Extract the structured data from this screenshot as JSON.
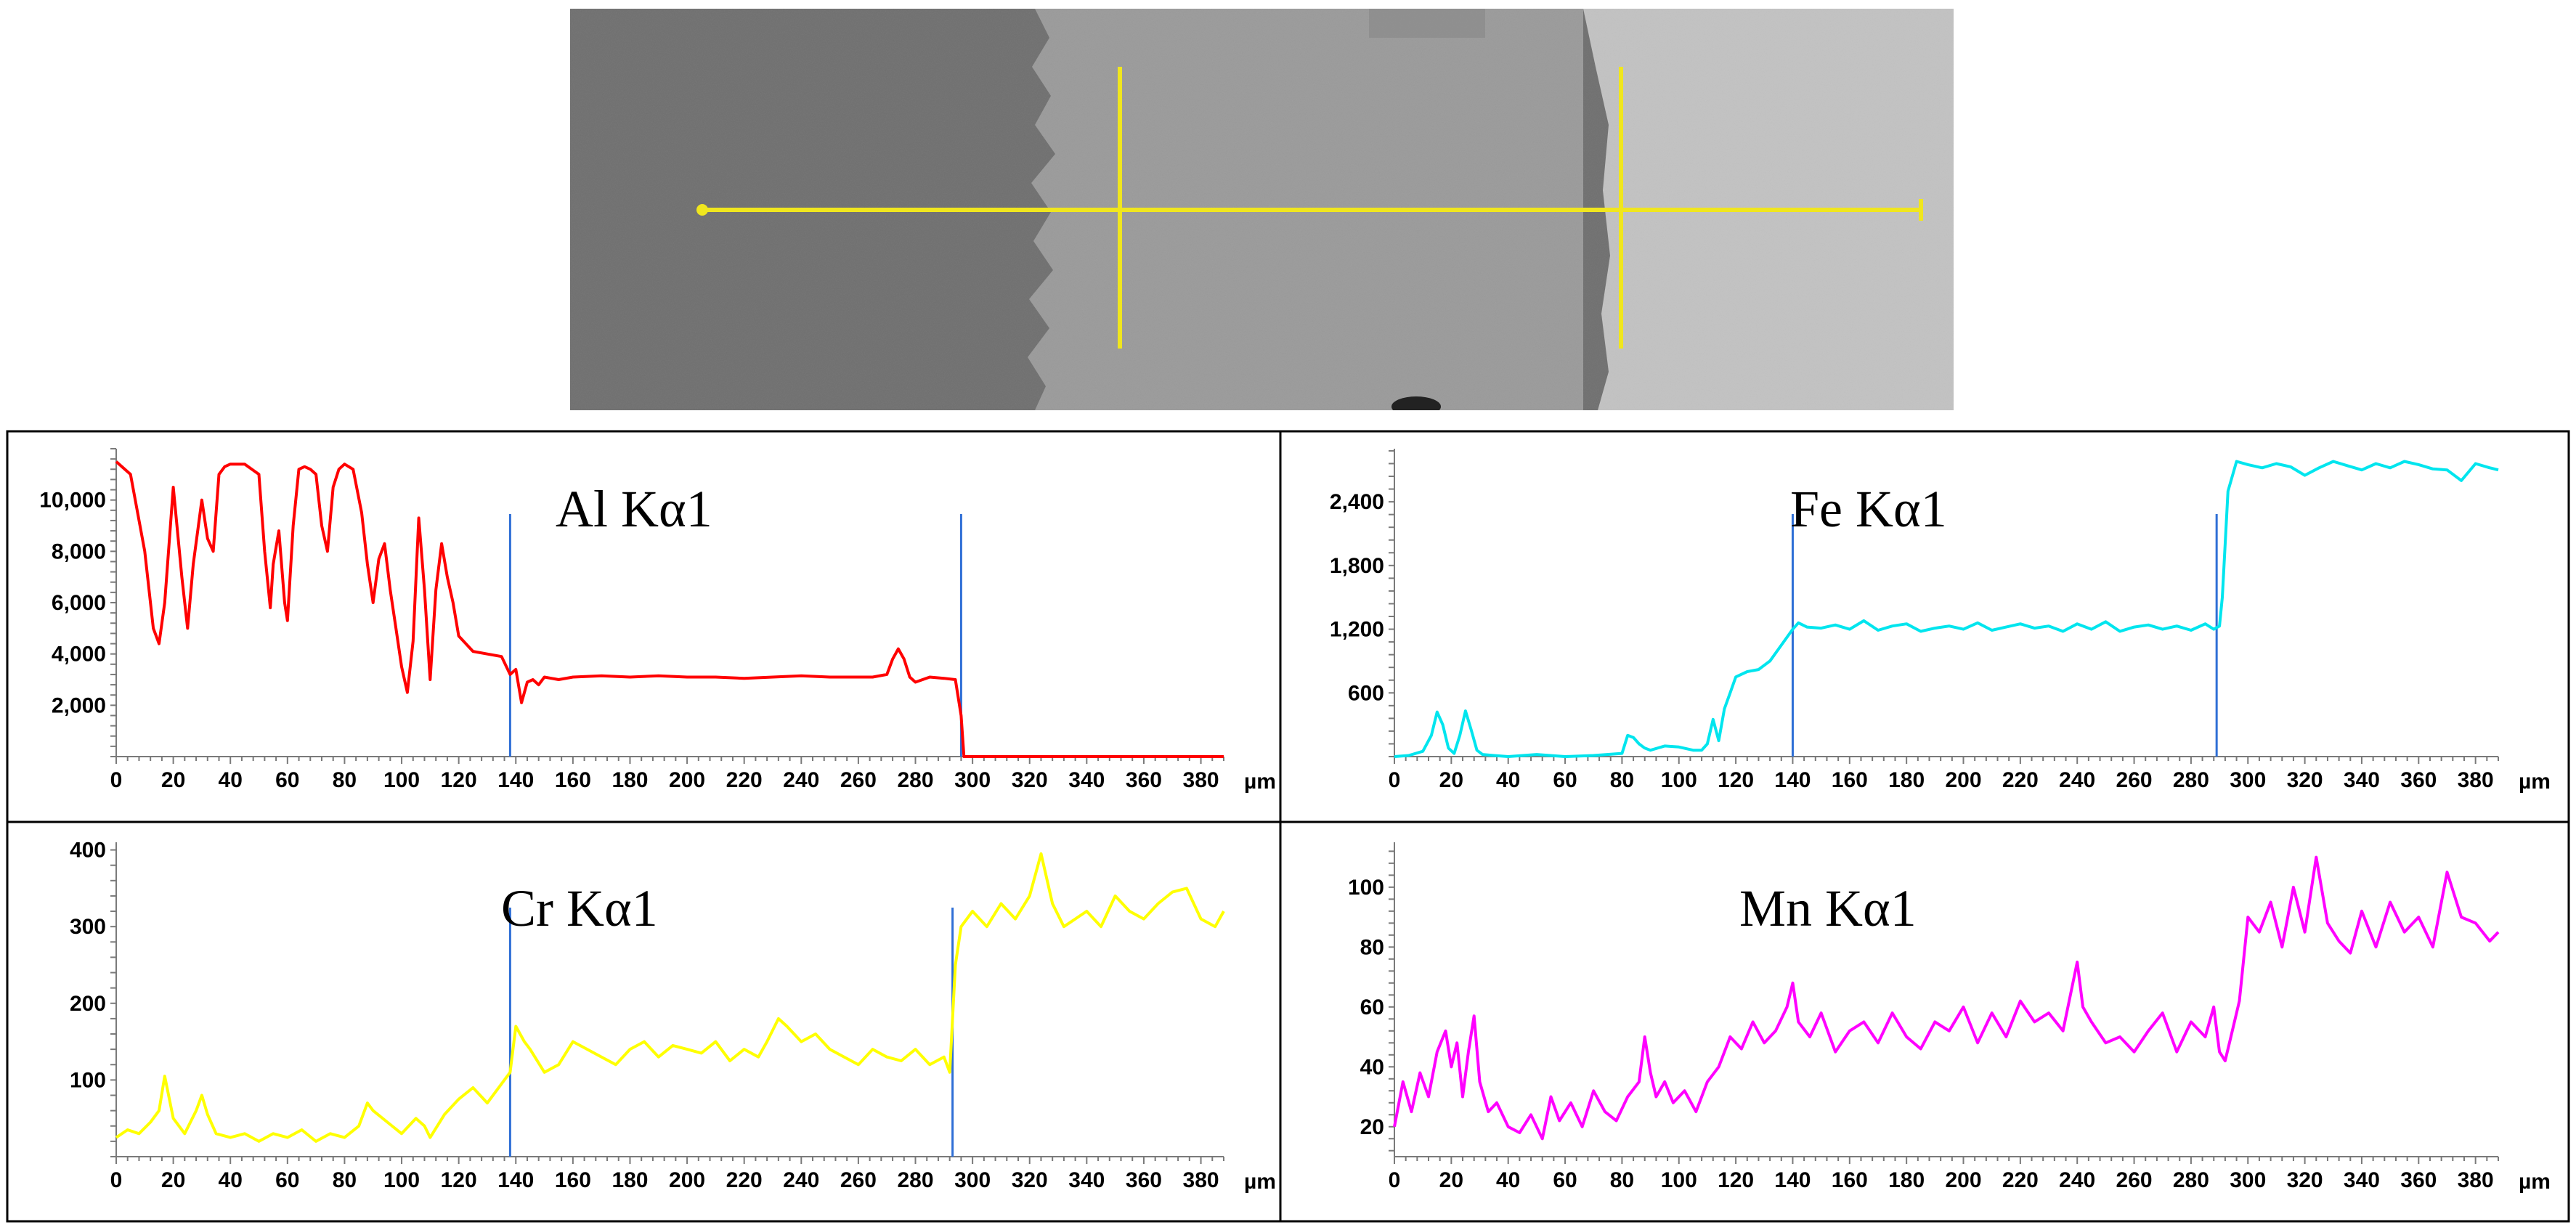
{
  "sem_image": {
    "scan_line_color": "#f0e61e",
    "phase_colors": [
      "#6f6f6f",
      "#9a9a9a",
      "#c2c2c2"
    ]
  },
  "chart_data": [
    {
      "type": "line",
      "title": "Al Kα1",
      "xlabel": "µm",
      "color": "#ff0000",
      "xlim": [
        0,
        388
      ],
      "ylim": [
        0,
        12000
      ],
      "x_ticks": [
        0,
        20,
        40,
        60,
        80,
        100,
        120,
        140,
        160,
        180,
        200,
        220,
        240,
        260,
        280,
        300,
        320,
        340,
        360,
        380
      ],
      "y_ticks": [
        2000,
        4000,
        6000,
        8000,
        10000
      ],
      "y_tick_labels": [
        "2,000",
        "4,000",
        "6,000",
        "8,000",
        "10,000"
      ],
      "boundaries": [
        138,
        296
      ],
      "series": [
        {
          "x": [
            0,
            5,
            10,
            13,
            15,
            17,
            20,
            23,
            25,
            27,
            30,
            32,
            34,
            36,
            38,
            40,
            45,
            50,
            52,
            54,
            55,
            57,
            59,
            60,
            62,
            64,
            66,
            68,
            70,
            72,
            74,
            76,
            78,
            80,
            83,
            86,
            88,
            90,
            92,
            94,
            96,
            98,
            100,
            102,
            104,
            106,
            108,
            110,
            112,
            114,
            116,
            118,
            120,
            125,
            130,
            135,
            138,
            140,
            142,
            144,
            146,
            148,
            150,
            155,
            160,
            170,
            180,
            190,
            200,
            210,
            220,
            230,
            240,
            250,
            260,
            265,
            270,
            272,
            274,
            276,
            278,
            280,
            285,
            290,
            294,
            296,
            297,
            300,
            320,
            340,
            360,
            380,
            388
          ],
          "y": [
            11500,
            11000,
            8000,
            5000,
            4400,
            6000,
            10500,
            7000,
            5000,
            7500,
            10000,
            8500,
            8000,
            11000,
            11300,
            11400,
            11400,
            11000,
            8000,
            5800,
            7500,
            8800,
            6000,
            5300,
            9000,
            11200,
            11300,
            11200,
            11000,
            9000,
            8000,
            10500,
            11200,
            11400,
            11200,
            9500,
            7500,
            6000,
            7700,
            8300,
            6500,
            5000,
            3500,
            2500,
            4500,
            9300,
            6500,
            3000,
            6500,
            8300,
            7000,
            6000,
            4700,
            4100,
            4000,
            3900,
            3200,
            3400,
            2100,
            2900,
            3000,
            2800,
            3100,
            3000,
            3100,
            3150,
            3100,
            3150,
            3100,
            3100,
            3050,
            3100,
            3150,
            3100,
            3100,
            3100,
            3200,
            3800,
            4200,
            3800,
            3100,
            2900,
            3100,
            3050,
            3000,
            1600,
            0,
            0,
            0,
            0,
            0,
            0,
            0
          ]
        }
      ]
    },
    {
      "type": "line",
      "title": "Fe Kα1",
      "xlabel": "µm",
      "color": "#00e5ee",
      "xlim": [
        0,
        388
      ],
      "ylim": [
        0,
        2900
      ],
      "x_ticks": [
        0,
        20,
        40,
        60,
        80,
        100,
        120,
        140,
        160,
        180,
        200,
        220,
        240,
        260,
        280,
        300,
        320,
        340,
        360,
        380
      ],
      "y_ticks": [
        600,
        1200,
        1800,
        2400
      ],
      "y_tick_labels": [
        "600",
        "1,200",
        "1,800",
        "2,400"
      ],
      "boundaries": [
        140,
        289
      ],
      "series": [
        {
          "x": [
            0,
            5,
            10,
            13,
            15,
            17,
            19,
            21,
            23,
            25,
            27,
            29,
            31,
            35,
            40,
            50,
            60,
            70,
            80,
            82,
            84,
            86,
            88,
            90,
            95,
            100,
            105,
            108,
            110,
            112,
            114,
            116,
            118,
            120,
            124,
            128,
            132,
            136,
            140,
            142,
            145,
            150,
            155,
            160,
            165,
            170,
            175,
            180,
            185,
            190,
            195,
            200,
            205,
            210,
            215,
            220,
            225,
            230,
            235,
            240,
            245,
            250,
            255,
            260,
            265,
            270,
            275,
            280,
            285,
            288,
            290,
            291,
            293,
            296,
            300,
            305,
            310,
            315,
            320,
            325,
            330,
            335,
            340,
            345,
            350,
            355,
            360,
            365,
            370,
            375,
            380,
            385,
            388
          ],
          "y": [
            0,
            10,
            50,
            200,
            420,
            300,
            80,
            30,
            200,
            430,
            250,
            60,
            20,
            10,
            0,
            20,
            0,
            10,
            30,
            200,
            180,
            120,
            80,
            60,
            100,
            90,
            60,
            60,
            120,
            350,
            150,
            450,
            600,
            750,
            800,
            820,
            900,
            1050,
            1200,
            1260,
            1220,
            1210,
            1240,
            1200,
            1280,
            1190,
            1230,
            1250,
            1180,
            1210,
            1230,
            1200,
            1260,
            1190,
            1220,
            1250,
            1210,
            1230,
            1180,
            1250,
            1200,
            1270,
            1180,
            1220,
            1240,
            1200,
            1230,
            1190,
            1250,
            1200,
            1230,
            1500,
            2500,
            2780,
            2750,
            2720,
            2760,
            2730,
            2650,
            2720,
            2780,
            2740,
            2700,
            2760,
            2720,
            2780,
            2750,
            2710,
            2700,
            2600,
            2760,
            2720,
            2700
          ]
        }
      ]
    },
    {
      "type": "line",
      "title": "Cr Kα1",
      "xlabel": "µm",
      "color": "#ffff00",
      "xlim": [
        0,
        388
      ],
      "ylim": [
        0,
        410
      ],
      "x_ticks": [
        0,
        20,
        40,
        60,
        80,
        100,
        120,
        140,
        160,
        180,
        200,
        220,
        240,
        260,
        280,
        300,
        320,
        340,
        360,
        380
      ],
      "y_ticks": [
        100,
        200,
        300,
        400
      ],
      "y_tick_labels": [
        "100",
        "200",
        "300",
        "400"
      ],
      "boundaries": [
        138,
        293
      ],
      "series": [
        {
          "x": [
            0,
            4,
            8,
            12,
            15,
            17,
            20,
            24,
            28,
            30,
            32,
            35,
            40,
            45,
            50,
            55,
            60,
            65,
            70,
            75,
            80,
            85,
            88,
            90,
            95,
            100,
            105,
            108,
            110,
            115,
            120,
            125,
            130,
            135,
            138,
            140,
            143,
            145,
            150,
            155,
            160,
            165,
            170,
            175,
            180,
            185,
            190,
            195,
            200,
            205,
            210,
            215,
            220,
            225,
            228,
            232,
            235,
            240,
            245,
            250,
            255,
            260,
            265,
            270,
            275,
            280,
            285,
            290,
            292,
            294,
            296,
            300,
            305,
            310,
            315,
            320,
            324,
            328,
            332,
            336,
            340,
            345,
            350,
            355,
            360,
            365,
            370,
            375,
            380,
            385,
            388
          ],
          "y": [
            25,
            35,
            30,
            45,
            60,
            105,
            50,
            30,
            60,
            80,
            55,
            30,
            25,
            30,
            20,
            30,
            25,
            35,
            20,
            30,
            25,
            40,
            70,
            60,
            45,
            30,
            50,
            40,
            25,
            55,
            75,
            90,
            70,
            95,
            110,
            170,
            150,
            140,
            110,
            120,
            150,
            140,
            130,
            120,
            140,
            150,
            130,
            145,
            140,
            135,
            150,
            125,
            140,
            130,
            150,
            180,
            170,
            150,
            160,
            140,
            130,
            120,
            140,
            130,
            125,
            140,
            120,
            130,
            110,
            250,
            300,
            320,
            300,
            330,
            310,
            340,
            395,
            330,
            300,
            310,
            320,
            300,
            340,
            320,
            310,
            330,
            345,
            350,
            310,
            300,
            320
          ]
        }
      ]
    },
    {
      "type": "line",
      "title": "Mn Kα1",
      "xlabel": "µm",
      "color": "#ff00ff",
      "xlim": [
        0,
        388
      ],
      "ylim": [
        10,
        115
      ],
      "x_ticks": [
        0,
        20,
        40,
        60,
        80,
        100,
        120,
        140,
        160,
        180,
        200,
        220,
        240,
        260,
        280,
        300,
        320,
        340,
        360,
        380
      ],
      "y_ticks": [
        20,
        40,
        60,
        80,
        100
      ],
      "y_tick_labels": [
        "20",
        "40",
        "60",
        "80",
        "100"
      ],
      "boundaries": [],
      "series": [
        {
          "x": [
            0,
            3,
            6,
            9,
            12,
            15,
            18,
            20,
            22,
            24,
            26,
            28,
            30,
            33,
            36,
            40,
            44,
            48,
            52,
            55,
            58,
            62,
            66,
            70,
            74,
            78,
            82,
            86,
            88,
            90,
            92,
            95,
            98,
            102,
            106,
            110,
            114,
            118,
            122,
            126,
            130,
            134,
            138,
            140,
            142,
            146,
            150,
            155,
            160,
            165,
            170,
            175,
            180,
            185,
            190,
            195,
            200,
            205,
            210,
            215,
            220,
            225,
            230,
            235,
            240,
            242,
            245,
            250,
            255,
            260,
            265,
            270,
            275,
            280,
            285,
            288,
            290,
            292,
            294,
            297,
            300,
            304,
            308,
            312,
            316,
            320,
            324,
            328,
            332,
            336,
            340,
            345,
            350,
            355,
            360,
            365,
            370,
            375,
            380,
            385,
            388
          ],
          "y": [
            20,
            35,
            25,
            38,
            30,
            45,
            52,
            40,
            48,
            30,
            45,
            57,
            35,
            25,
            28,
            20,
            18,
            24,
            16,
            30,
            22,
            28,
            20,
            32,
            25,
            22,
            30,
            35,
            50,
            38,
            30,
            35,
            28,
            32,
            25,
            35,
            40,
            50,
            46,
            55,
            48,
            52,
            60,
            68,
            55,
            50,
            58,
            45,
            52,
            55,
            48,
            58,
            50,
            46,
            55,
            52,
            60,
            48,
            58,
            50,
            62,
            55,
            58,
            52,
            75,
            60,
            55,
            48,
            50,
            45,
            52,
            58,
            45,
            55,
            50,
            60,
            45,
            42,
            50,
            62,
            90,
            85,
            95,
            80,
            100,
            85,
            110,
            88,
            82,
            78,
            92,
            80,
            95,
            85,
            90,
            80,
            105,
            90,
            88,
            82,
            85
          ]
        }
      ]
    }
  ]
}
